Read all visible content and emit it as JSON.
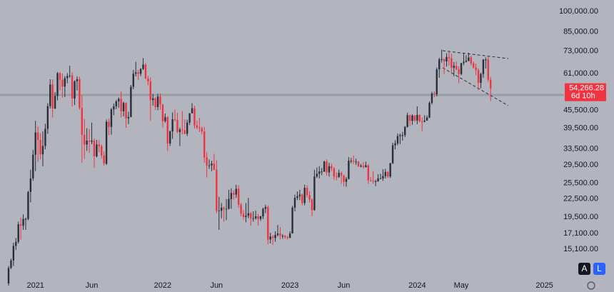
{
  "chart_data": {
    "type": "candlestick",
    "up_color": "#2a2e39",
    "down_color": "#ef3340",
    "log_scale": true,
    "ylim": [
      12100,
      109500
    ],
    "yticks": [
      {
        "value": 15100,
        "label": "15,100.00"
      },
      {
        "value": 17100,
        "label": "17,100.00"
      },
      {
        "value": 19500,
        "label": "19,500.00"
      },
      {
        "value": 22500,
        "label": "22,500.00"
      },
      {
        "value": 25500,
        "label": "25,500.00"
      },
      {
        "value": 29500,
        "label": "29,500.00"
      },
      {
        "value": 33500,
        "label": "33,500.00"
      },
      {
        "value": 39500,
        "label": "39,500.00"
      },
      {
        "value": 45500,
        "label": "45,500.00"
      },
      {
        "value": 61000,
        "label": "61,000.00"
      },
      {
        "value": 73000,
        "label": "73,000.00"
      },
      {
        "value": 85000,
        "label": "85,000.00"
      },
      {
        "value": 100000,
        "label": "100,000.00"
      }
    ],
    "xlim": [
      -3.5,
      227
    ],
    "xticks": [
      {
        "value": 11,
        "label": "2021"
      },
      {
        "value": 34,
        "label": "Jun"
      },
      {
        "value": 63,
        "label": "2022"
      },
      {
        "value": 85,
        "label": "Jun"
      },
      {
        "value": 115,
        "label": "2023"
      },
      {
        "value": 137,
        "label": "Jun"
      },
      {
        "value": 167,
        "label": "2024"
      },
      {
        "value": 185,
        "label": "May"
      },
      {
        "value": 219,
        "label": "2025"
      }
    ],
    "price_label": "54,266.28",
    "countdown": "6d 10h",
    "candles": [
      [
        11500,
        13200,
        11300,
        13000
      ],
      [
        13000,
        14000,
        12900,
        13800
      ],
      [
        13800,
        15900,
        13200,
        15500
      ],
      [
        15500,
        16500,
        15000,
        16000
      ],
      [
        16000,
        18800,
        15800,
        18400
      ],
      [
        18400,
        19400,
        16300,
        18200
      ],
      [
        18200,
        19900,
        17600,
        19200
      ],
      [
        19200,
        19400,
        17600,
        19200
      ],
      [
        19200,
        24000,
        19000,
        23800
      ],
      [
        23800,
        28400,
        21900,
        26500
      ],
      [
        26500,
        33300,
        26000,
        32000
      ],
      [
        32000,
        41900,
        28100,
        38200
      ],
      [
        38200,
        40100,
        30300,
        36000
      ],
      [
        36000,
        38000,
        30800,
        32100
      ],
      [
        32100,
        38500,
        29200,
        34300
      ],
      [
        34300,
        40900,
        33400,
        39300
      ],
      [
        39300,
        48200,
        37800,
        47100
      ],
      [
        47100,
        58300,
        46200,
        55900
      ],
      [
        55900,
        58300,
        43000,
        46200
      ],
      [
        46200,
        52600,
        46000,
        51000
      ],
      [
        51000,
        61800,
        49300,
        61200
      ],
      [
        61200,
        61700,
        53300,
        58100
      ],
      [
        58100,
        61000,
        50400,
        55000
      ],
      [
        55000,
        59800,
        50600,
        58800
      ],
      [
        58800,
        61200,
        56500,
        59800
      ],
      [
        59800,
        64900,
        59000,
        60100
      ],
      [
        60100,
        61500,
        47000,
        50000
      ],
      [
        50000,
        57800,
        47500,
        57400
      ],
      [
        57400,
        59600,
        53300,
        58300
      ],
      [
        58300,
        59500,
        45800,
        46400
      ],
      [
        46400,
        51400,
        30000,
        37500
      ],
      [
        37500,
        42500,
        31000,
        34700
      ],
      [
        34700,
        39500,
        33000,
        35800
      ],
      [
        35800,
        39300,
        32500,
        35500
      ],
      [
        35500,
        41300,
        34800,
        35800
      ],
      [
        35800,
        36400,
        28800,
        31600
      ],
      [
        31600,
        36000,
        31300,
        34700
      ],
      [
        34700,
        35900,
        32700,
        34200
      ],
      [
        34200,
        34700,
        31000,
        31800
      ],
      [
        31800,
        32800,
        29300,
        29800
      ],
      [
        29800,
        42300,
        29500,
        41600
      ],
      [
        41600,
        42600,
        37400,
        39900
      ],
      [
        39900,
        46400,
        37500,
        45900
      ],
      [
        45900,
        48100,
        43800,
        47000
      ],
      [
        47000,
        49500,
        46000,
        48900
      ],
      [
        48900,
        50500,
        46500,
        49900
      ],
      [
        49900,
        52900,
        43000,
        45200
      ],
      [
        45200,
        48800,
        43400,
        48300
      ],
      [
        48300,
        48500,
        39600,
        42700
      ],
      [
        42700,
        45000,
        40800,
        43200
      ],
      [
        43200,
        55700,
        43100,
        54900
      ],
      [
        54900,
        62800,
        53900,
        60900
      ],
      [
        60900,
        67000,
        59600,
        61600
      ],
      [
        61600,
        62800,
        58000,
        60900
      ],
      [
        60900,
        63600,
        59800,
        63300
      ],
      [
        63300,
        69000,
        62800,
        65500
      ],
      [
        65500,
        66300,
        58400,
        58600
      ],
      [
        58600,
        59900,
        55600,
        57300
      ],
      [
        57300,
        59100,
        42000,
        49400
      ],
      [
        49400,
        51900,
        47300,
        50100
      ],
      [
        50100,
        50500,
        45600,
        46700
      ],
      [
        46700,
        52000,
        45600,
        50800
      ],
      [
        50800,
        52100,
        45700,
        47700
      ],
      [
        47700,
        47900,
        39700,
        41800
      ],
      [
        41800,
        44400,
        41300,
        43100
      ],
      [
        43100,
        43500,
        33000,
        35000
      ],
      [
        35000,
        38800,
        34300,
        38500
      ],
      [
        38500,
        44800,
        36300,
        42400
      ],
      [
        42400,
        45800,
        41700,
        42200
      ],
      [
        42200,
        44700,
        38000,
        38300
      ],
      [
        38300,
        39700,
        34300,
        39100
      ],
      [
        39100,
        45300,
        37600,
        38900
      ],
      [
        38900,
        42400,
        37600,
        37800
      ],
      [
        37800,
        42300,
        37100,
        41300
      ],
      [
        41300,
        44500,
        40500,
        44500
      ],
      [
        44500,
        48200,
        44400,
        46300
      ],
      [
        46300,
        47200,
        39400,
        40400
      ],
      [
        40400,
        42000,
        39200,
        39700
      ],
      [
        39700,
        42900,
        38300,
        39500
      ],
      [
        39500,
        40000,
        37700,
        38500
      ],
      [
        38500,
        39900,
        30000,
        31300
      ],
      [
        31300,
        32600,
        26700,
        29400
      ],
      [
        29400,
        30800,
        28600,
        29400
      ],
      [
        29400,
        30500,
        28100,
        29800
      ],
      [
        29800,
        32200,
        28300,
        28400
      ],
      [
        28400,
        30600,
        20100,
        20500
      ],
      [
        20500,
        22900,
        17600,
        20500
      ],
      [
        20500,
        21800,
        19300,
        21000
      ],
      [
        21000,
        21200,
        18800,
        20800
      ],
      [
        20800,
        22500,
        19000,
        20800
      ],
      [
        20800,
        24200,
        20700,
        22500
      ],
      [
        22500,
        24500,
        20800,
        23600
      ],
      [
        23600,
        24100,
        22400,
        23300
      ],
      [
        23300,
        25200,
        22700,
        24400
      ],
      [
        24400,
        25100,
        21000,
        21500
      ],
      [
        21500,
        21800,
        19600,
        20000
      ],
      [
        20000,
        20600,
        19100,
        19500
      ],
      [
        19500,
        21800,
        18700,
        19700
      ],
      [
        19700,
        22700,
        19300,
        20100
      ],
      [
        20100,
        20300,
        18200,
        19300
      ],
      [
        19300,
        20400,
        18800,
        19300
      ],
      [
        19300,
        20500,
        19100,
        19600
      ],
      [
        19600,
        20000,
        18200,
        19200
      ],
      [
        19200,
        19700,
        18900,
        19600
      ],
      [
        19600,
        21000,
        19200,
        20800
      ],
      [
        20800,
        21500,
        20100,
        21100
      ],
      [
        21100,
        21400,
        15700,
        16300
      ],
      [
        16300,
        17200,
        15800,
        16700
      ],
      [
        16700,
        16900,
        15600,
        16500
      ],
      [
        16500,
        17400,
        16000,
        16900
      ],
      [
        16900,
        18300,
        16700,
        17100
      ],
      [
        17100,
        18000,
        16300,
        16800
      ],
      [
        16800,
        17000,
        16400,
        16800
      ],
      [
        16800,
        16900,
        16400,
        16600
      ],
      [
        16600,
        16800,
        16300,
        16500
      ],
      [
        16500,
        17400,
        16500,
        17100
      ],
      [
        17100,
        21300,
        17100,
        21000
      ],
      [
        21000,
        23300,
        20400,
        22700
      ],
      [
        22700,
        23900,
        22300,
        23000
      ],
      [
        23000,
        24200,
        22300,
        23300
      ],
      [
        23300,
        23500,
        21400,
        21800
      ],
      [
        21800,
        25200,
        21400,
        24600
      ],
      [
        24600,
        25100,
        22800,
        23200
      ],
      [
        23200,
        23900,
        21900,
        22400
      ],
      [
        22400,
        22600,
        19600,
        20600
      ],
      [
        20600,
        28400,
        20500,
        26900
      ],
      [
        26900,
        28900,
        26600,
        27500
      ],
      [
        27500,
        29200,
        26500,
        28000
      ],
      [
        28000,
        28800,
        27200,
        28000
      ],
      [
        28000,
        30500,
        27900,
        30300
      ],
      [
        30300,
        30900,
        27100,
        27800
      ],
      [
        27800,
        30000,
        26900,
        29200
      ],
      [
        29200,
        29800,
        28100,
        28700
      ],
      [
        28700,
        29000,
        26200,
        26900
      ],
      [
        26900,
        27800,
        26100,
        26800
      ],
      [
        26800,
        28400,
        26600,
        27700
      ],
      [
        27700,
        28000,
        25400,
        27100
      ],
      [
        27100,
        27300,
        24900,
        25800
      ],
      [
        25800,
        26800,
        24800,
        26400
      ],
      [
        26400,
        31400,
        26300,
        30500
      ],
      [
        30500,
        31200,
        29900,
        30500
      ],
      [
        30500,
        31800,
        29700,
        30300
      ],
      [
        30300,
        31000,
        29500,
        30300
      ],
      [
        30300,
        30400,
        29000,
        29200
      ],
      [
        29200,
        29700,
        28900,
        29300
      ],
      [
        29300,
        30200,
        28600,
        29000
      ],
      [
        29000,
        30300,
        28900,
        29400
      ],
      [
        29400,
        29700,
        25400,
        26100
      ],
      [
        26100,
        26800,
        25800,
        26000
      ],
      [
        26000,
        28100,
        25400,
        25900
      ],
      [
        25900,
        26200,
        24900,
        25900
      ],
      [
        25900,
        27400,
        25800,
        26500
      ],
      [
        26500,
        27500,
        26400,
        26500
      ],
      [
        26500,
        28500,
        26000,
        27000
      ],
      [
        27000,
        28600,
        26500,
        27900
      ],
      [
        27900,
        28000,
        26600,
        26900
      ],
      [
        26900,
        30000,
        26600,
        29900
      ],
      [
        29900,
        35200,
        29700,
        34500
      ],
      [
        34500,
        35900,
        33400,
        35000
      ],
      [
        35000,
        37900,
        34500,
        37100
      ],
      [
        37100,
        37900,
        34800,
        37400
      ],
      [
        37400,
        38400,
        35800,
        37400
      ],
      [
        37400,
        40200,
        36800,
        39900
      ],
      [
        39900,
        44700,
        39700,
        43800
      ],
      [
        43800,
        44000,
        40200,
        41900
      ],
      [
        41900,
        44100,
        40600,
        43700
      ],
      [
        43700,
        43800,
        41500,
        42000
      ],
      [
        42000,
        47000,
        40800,
        43900
      ],
      [
        43900,
        44100,
        41400,
        41700
      ],
      [
        41700,
        43000,
        38600,
        41600
      ],
      [
        41600,
        43800,
        41400,
        42000
      ],
      [
        42000,
        43700,
        41900,
        43000
      ],
      [
        43000,
        48900,
        42800,
        48300
      ],
      [
        48300,
        52800,
        47700,
        52100
      ],
      [
        52100,
        52900,
        50600,
        51700
      ],
      [
        51700,
        64000,
        50900,
        63100
      ],
      [
        63100,
        69200,
        59000,
        68300
      ],
      [
        68300,
        73800,
        66600,
        68400
      ],
      [
        68400,
        68900,
        60800,
        67200
      ],
      [
        67200,
        71700,
        64500,
        69600
      ],
      [
        69600,
        72700,
        65000,
        68900
      ],
      [
        68900,
        71300,
        60800,
        63900
      ],
      [
        63900,
        66900,
        59700,
        64900
      ],
      [
        64900,
        67100,
        62600,
        63100
      ],
      [
        63100,
        64700,
        56500,
        60800
      ],
      [
        60800,
        66400,
        60200,
        66300
      ],
      [
        66300,
        71900,
        65200,
        67000
      ],
      [
        67000,
        70600,
        66600,
        67600
      ],
      [
        67600,
        71900,
        67100,
        69300
      ],
      [
        69300,
        70400,
        65100,
        66200
      ],
      [
        66200,
        67200,
        63400,
        64000
      ],
      [
        64000,
        66000,
        60200,
        62700
      ],
      [
        62700,
        63700,
        53500,
        56700
      ],
      [
        56700,
        61400,
        54300,
        60800
      ],
      [
        60800,
        68400,
        59000,
        68200
      ],
      [
        68200,
        69400,
        63500,
        68200
      ],
      [
        68200,
        70000,
        57100,
        58100
      ],
      [
        58100,
        59400,
        49000,
        54266.28
      ]
    ]
  },
  "buttons": [
    "A",
    "L"
  ]
}
